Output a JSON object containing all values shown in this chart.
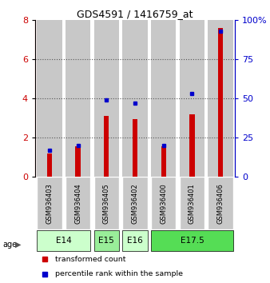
{
  "title": "GDS4591 / 1416759_at",
  "samples": [
    "GSM936403",
    "GSM936404",
    "GSM936405",
    "GSM936402",
    "GSM936400",
    "GSM936401",
    "GSM936406"
  ],
  "red_values": [
    1.2,
    1.55,
    3.1,
    2.95,
    1.55,
    3.2,
    7.6
  ],
  "blue_percentiles": [
    17,
    20,
    49,
    47,
    20,
    53,
    93
  ],
  "age_groups": [
    {
      "label": "E14",
      "span": [
        0,
        1
      ],
      "color": "#ccffcc"
    },
    {
      "label": "E15",
      "span": [
        2,
        2
      ],
      "color": "#99ee99"
    },
    {
      "label": "E16",
      "span": [
        3,
        3
      ],
      "color": "#ccffcc"
    },
    {
      "label": "E17.5",
      "span": [
        4,
        6
      ],
      "color": "#55dd55"
    }
  ],
  "ylim_left": [
    0,
    8
  ],
  "ylim_right": [
    0,
    100
  ],
  "yticks_left": [
    0,
    2,
    4,
    6,
    8
  ],
  "yticks_right": [
    0,
    25,
    50,
    75,
    100
  ],
  "red_color": "#cc0000",
  "blue_color": "#0000cc",
  "bar_bg_color": "#c8c8c8",
  "legend_red": "transformed count",
  "legend_blue": "percentile rank within the sample"
}
